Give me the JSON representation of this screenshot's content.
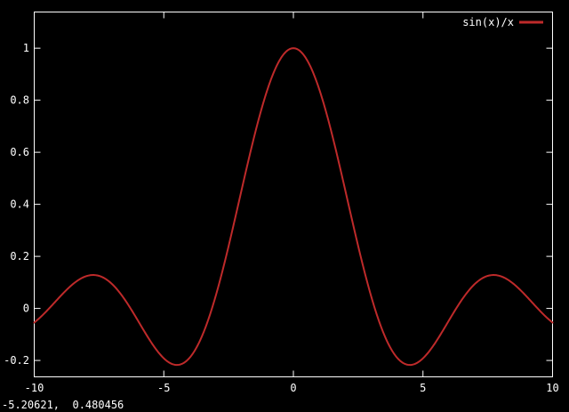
{
  "colors": {
    "background": "#000000",
    "foreground": "#ffffff",
    "curve": "#be2a2a"
  },
  "status": {
    "coordinates_readout": "-5.20621,  0.480456"
  },
  "chart_data": {
    "type": "line",
    "title": "",
    "xlabel": "",
    "ylabel": "",
    "xlim": [
      -10,
      10
    ],
    "ylim": [
      -0.263,
      1.139
    ],
    "x_ticks": [
      -10,
      -5,
      0,
      5,
      10
    ],
    "x_tick_labels": [
      "-10",
      "-5",
      "0",
      "5",
      "10"
    ],
    "y_ticks": [
      -0.2,
      0,
      0.2,
      0.4,
      0.6,
      0.8,
      1
    ],
    "y_tick_labels": [
      "-0.2",
      "0",
      "0.2",
      "0.4",
      "0.6",
      "0.8",
      "1"
    ],
    "series": [
      {
        "name": "sin(x)/x",
        "expression": "sin(x)/x",
        "color": "#be2a2a",
        "sample_count": 585,
        "key_points": {
          "peak": [
            0,
            1
          ],
          "first_minima": [
            [
              -4.49,
              -0.217
            ],
            [
              4.49,
              -0.217
            ]
          ],
          "second_maxima": [
            [
              -7.73,
              0.128
            ],
            [
              7.73,
              0.128
            ]
          ],
          "endpoints": [
            [
              -10,
              -0.0544
            ],
            [
              10,
              -0.0544
            ]
          ]
        }
      }
    ],
    "legend": {
      "position": "top-right-inside",
      "entries": [
        {
          "label": "sin(x)/x",
          "color": "#be2a2a"
        }
      ]
    },
    "grid": false,
    "tick_style": "inward, mirrored on all four sides",
    "plot_background": "#000000",
    "axis_color": "#ffffff"
  }
}
